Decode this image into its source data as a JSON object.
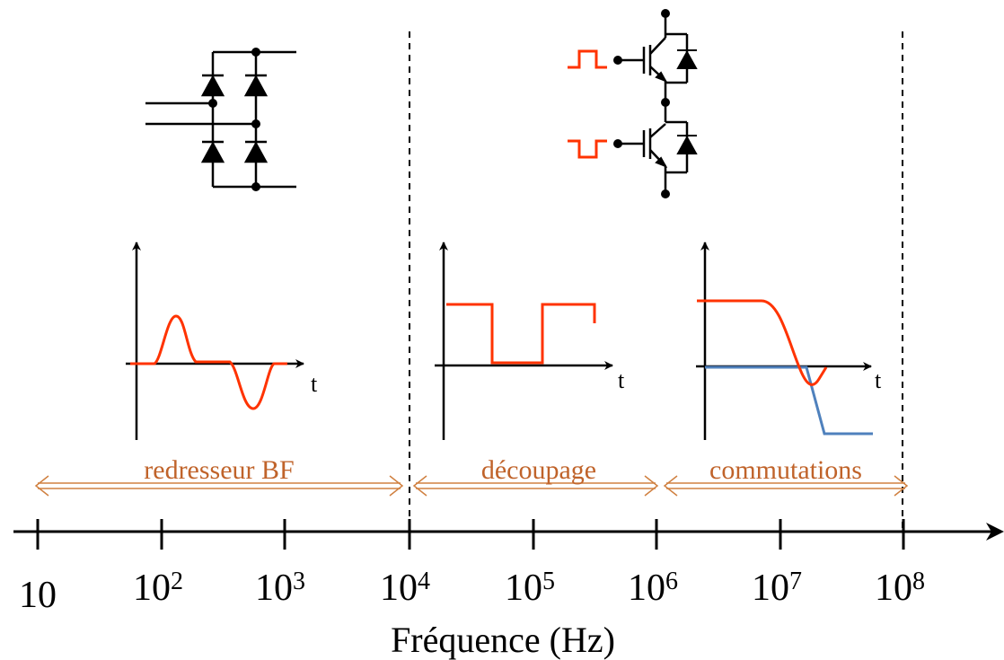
{
  "colors": {
    "signal": "#ff3300",
    "secondary_signal": "#4f81bd",
    "range_arrow": "#d08040",
    "range_text": "#c0632a",
    "ink": "#000000"
  },
  "frequency_axis": {
    "title": "Fréquence (Hz)",
    "scale": "log",
    "ticks": [
      {
        "base": "10",
        "exp": ""
      },
      {
        "base": "10",
        "exp": "2"
      },
      {
        "base": "10",
        "exp": "3"
      },
      {
        "base": "10",
        "exp": "4"
      },
      {
        "base": "10",
        "exp": "5"
      },
      {
        "base": "10",
        "exp": "6"
      },
      {
        "base": "10",
        "exp": "7"
      },
      {
        "base": "10",
        "exp": "8"
      }
    ]
  },
  "ranges": [
    {
      "label": "redresseur BF",
      "from": "10",
      "to": "10^4"
    },
    {
      "label": "découpage",
      "from": "10^4",
      "to": "10^6"
    },
    {
      "label": "commutations",
      "from": "10^6",
      "to": "10^8"
    }
  ],
  "waveforms": [
    {
      "axis_label": "t",
      "shape": "bipolar pulses (recovery current)"
    },
    {
      "axis_label": "t",
      "shape": "square wave"
    },
    {
      "axis_label": "t",
      "shape": "switching edge with overshoot"
    }
  ],
  "circuits": {
    "rectifier": "diode-bridge-icon",
    "switching_cell": "igbt-half-bridge-icon"
  }
}
